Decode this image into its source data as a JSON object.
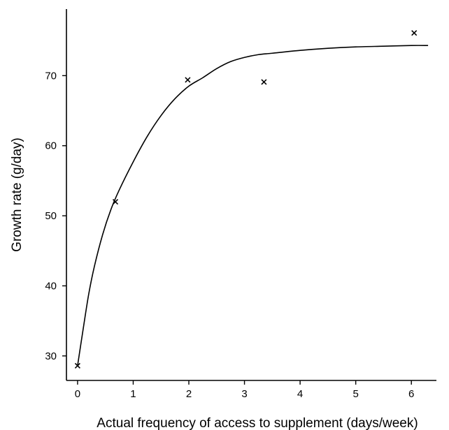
{
  "chart_data": {
    "type": "scatter",
    "title": "",
    "xlabel": "Actual frequency of access to supplement (days/week)",
    "ylabel": "Growth rate (g/day)",
    "xlim": [
      -0.2,
      6.45
    ],
    "ylim": [
      26.5,
      79.5
    ],
    "xticks": [
      0,
      1,
      2,
      3,
      4,
      5,
      6
    ],
    "yticks": [
      30,
      40,
      50,
      60,
      70
    ],
    "grid": false,
    "legend": false,
    "series": [
      {
        "marker": "x",
        "points": [
          {
            "x": 0.0,
            "y": 28.6
          },
          {
            "x": 0.68,
            "y": 52.0
          },
          {
            "x": 1.98,
            "y": 69.4
          },
          {
            "x": 3.35,
            "y": 69.1
          },
          {
            "x": 6.05,
            "y": 76.1
          }
        ]
      },
      {
        "line": "fitted curve",
        "points": [
          {
            "x": 0.0,
            "y": 28.6
          },
          {
            "x": 0.1,
            "y": 33.8
          },
          {
            "x": 0.2,
            "y": 38.8
          },
          {
            "x": 0.3,
            "y": 42.7
          },
          {
            "x": 0.45,
            "y": 47.3
          },
          {
            "x": 0.6,
            "y": 50.9
          },
          {
            "x": 0.75,
            "y": 53.7
          },
          {
            "x": 1.0,
            "y": 57.7
          },
          {
            "x": 1.25,
            "y": 61.3
          },
          {
            "x": 1.5,
            "y": 64.3
          },
          {
            "x": 1.75,
            "y": 66.7
          },
          {
            "x": 2.0,
            "y": 68.5
          },
          {
            "x": 2.25,
            "y": 69.7
          },
          {
            "x": 2.5,
            "y": 71.0
          },
          {
            "x": 2.75,
            "y": 72.0
          },
          {
            "x": 3.0,
            "y": 72.6
          },
          {
            "x": 3.25,
            "y": 73.0
          },
          {
            "x": 3.5,
            "y": 73.2
          },
          {
            "x": 4.0,
            "y": 73.6
          },
          {
            "x": 4.5,
            "y": 73.9
          },
          {
            "x": 5.0,
            "y": 74.1
          },
          {
            "x": 5.5,
            "y": 74.2
          },
          {
            "x": 6.0,
            "y": 74.3
          },
          {
            "x": 6.3,
            "y": 74.3
          }
        ]
      }
    ]
  }
}
